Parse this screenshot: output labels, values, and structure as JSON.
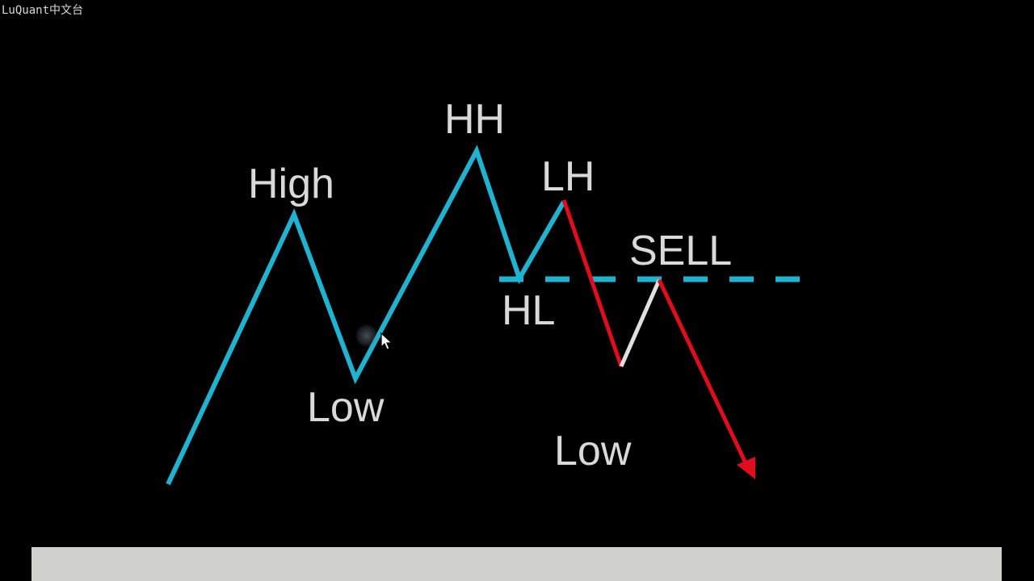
{
  "watermark": "LuQuant中文台",
  "labels": {
    "high": "High",
    "low_1": "Low",
    "hh": "HH",
    "hl": "HL",
    "lh": "LH",
    "sell": "SELL",
    "low_2": "Low"
  },
  "colors": {
    "background": "#000000",
    "uptrend_line": "#1fb3cf",
    "downtrend_line": "#e00d1d",
    "pullback_line": "#e0e0e0",
    "label_text": "#d9d9d9",
    "support_dashed": "#1fb3cf",
    "bottom_bar": "#d0d0cc"
  },
  "icons": {
    "cursor": "mouse-pointer-icon",
    "arrow": "arrow-head-icon"
  }
}
